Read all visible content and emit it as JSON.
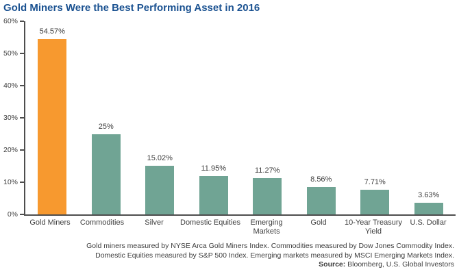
{
  "title": "Gold Miners Were the Best Performing Asset in 2016",
  "chart_data": {
    "type": "bar",
    "title": "Gold Miners Were the Best Performing Asset in 2016",
    "categories": [
      "Gold Miners",
      "Commodities",
      "Silver",
      "Domestic Equities",
      "Emerging\nMarkets",
      "Gold",
      "10-Year Treasury\nYield",
      "U.S. Dollar"
    ],
    "values": [
      54.57,
      25,
      15.02,
      11.95,
      11.27,
      8.56,
      7.71,
      3.63
    ],
    "value_labels": [
      "54.57%",
      "25%",
      "15.02%",
      "11.95%",
      "11.27%",
      "8.56%",
      "7.71%",
      "3.63%"
    ],
    "xlabel": "",
    "ylabel": "",
    "ylim": [
      0,
      60
    ],
    "ytick_step": 10,
    "ytick_labels": [
      "0%",
      "10%",
      "20%",
      "30%",
      "40%",
      "50%",
      "60%"
    ],
    "grid": false,
    "legend": false,
    "bar_color": "#70A494",
    "highlight_index": 0,
    "highlight_color": "#F7992F"
  },
  "footnotes": {
    "line1": "Gold miners measured by NYSE Arca Gold Miners Index. Commodities measured by Dow Jones Commodity Index.",
    "line2": "Domestic Equities measured by S&P 500 Index. Emerging markets measured by MSCI Emerging Markets Index."
  },
  "source": {
    "label": "Source:",
    "text": "Bloomberg, U.S. Global Investors"
  },
  "colors": {
    "title_blue": "#1B5291",
    "bar_teal": "#70A494",
    "bar_orange": "#F7992F",
    "axis": "#4D4D4D",
    "text": "#3D3D3D"
  }
}
